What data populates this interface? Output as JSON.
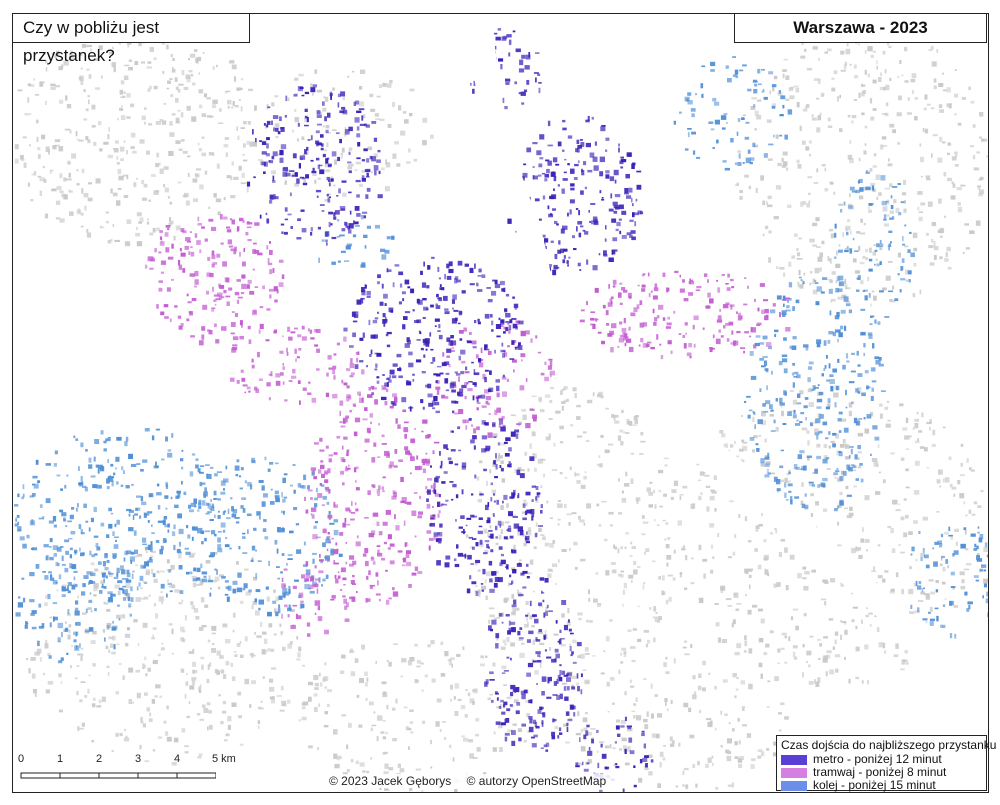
{
  "map": {
    "title": "Czy w pobliżu jest przystanek?",
    "city_label": "Warszawa - 2023",
    "colors": {
      "background": "#ffffff",
      "river": "#ffffff",
      "unserved": "#c9c9c9",
      "metro": "#3b1fb8",
      "tram": "#c35bd1",
      "rail": "#4f8fd6"
    }
  },
  "legend": {
    "title": "Czas dojścia do najbliższego przystanku",
    "items": [
      {
        "label": "metro - poniżej 12 minut",
        "color": "#5a3fd6"
      },
      {
        "label": "tramwaj - poniżej 8 minut",
        "color": "#d57fe0"
      },
      {
        "label": "kolej - poniżej 15 minut",
        "color": "#6b8fe8"
      }
    ]
  },
  "scale": {
    "labels": [
      "0",
      "1",
      "2",
      "3",
      "4",
      "5 km"
    ]
  },
  "credits": {
    "author": "© 2023 Jacek Gęborys",
    "data": "© autorzy OpenStreetMap"
  }
}
